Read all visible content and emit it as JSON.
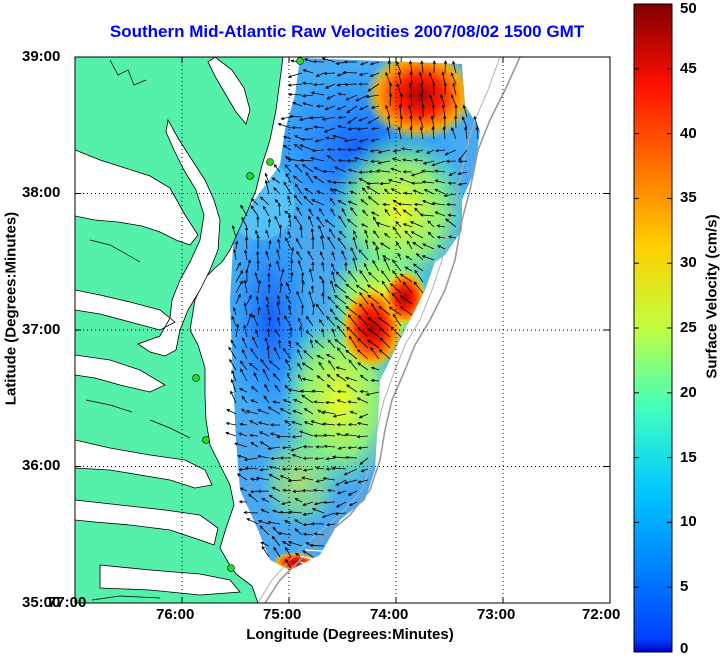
{
  "title": "Southern Mid-Atlantic Raw Velocities 2007/08/02 1500 GMT",
  "axes": {
    "xlabel": "Longitude (Degrees:Minutes)",
    "ylabel": "Latitude (Degrees:Minutes)",
    "xticks": [
      "77:00",
      "76:00",
      "75:00",
      "74:00",
      "73:00",
      "72:00"
    ],
    "yticks": [
      "39:00",
      "38:00",
      "37:00",
      "36:00",
      "35:00"
    ],
    "xlim_deg_west": [
      77,
      72
    ],
    "ylim_deg_north": [
      35,
      39
    ]
  },
  "colorbar": {
    "label": "Surface Velocity (cm/s)",
    "ticks": [
      "50",
      "45",
      "40",
      "35",
      "30",
      "25",
      "20",
      "15",
      "10",
      "5",
      "0"
    ],
    "range": [
      0,
      50
    ],
    "colormap": "jet"
  },
  "colors": {
    "land": "#55f0aa",
    "water": "#ffffff",
    "title": "#0000ff",
    "station": "#22dd22",
    "vector": "#000000"
  }
}
